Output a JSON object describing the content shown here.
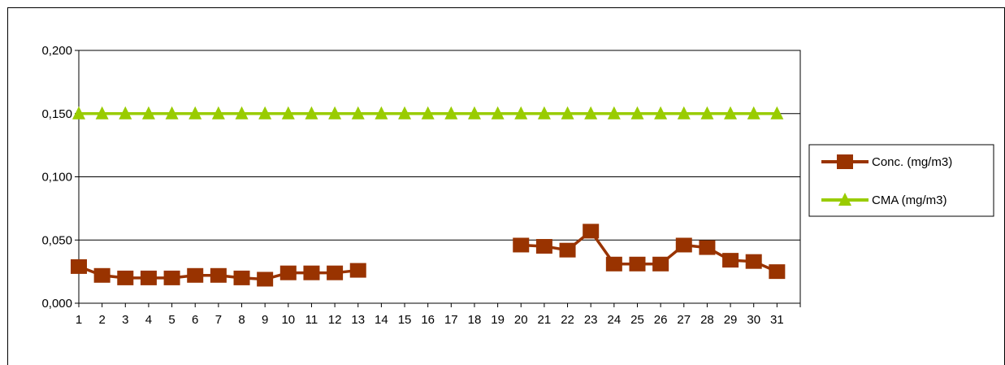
{
  "chart_data": {
    "type": "line",
    "categories": [
      "1",
      "2",
      "3",
      "4",
      "5",
      "6",
      "7",
      "8",
      "9",
      "10",
      "11",
      "12",
      "13",
      "14",
      "15",
      "16",
      "17",
      "18",
      "19",
      "20",
      "21",
      "22",
      "23",
      "24",
      "25",
      "26",
      "27",
      "28",
      "29",
      "30",
      "31"
    ],
    "ylim": [
      0,
      0.2
    ],
    "yticks": [
      "0,000",
      "0,050",
      "0,100",
      "0,150",
      "0,200"
    ],
    "ytick_values": [
      0,
      0.05,
      0.1,
      0.15,
      0.2
    ],
    "grid": "horizontal",
    "legend_position": "right",
    "series": [
      {
        "name": "Conc. (mg/m3)",
        "color": "#993300",
        "marker": "square",
        "values": [
          0.029,
          0.022,
          0.02,
          0.02,
          0.02,
          0.022,
          0.022,
          0.02,
          0.019,
          0.024,
          0.024,
          0.024,
          0.026,
          null,
          null,
          null,
          null,
          null,
          null,
          0.046,
          0.045,
          0.042,
          0.057,
          0.031,
          0.031,
          0.031,
          0.046,
          0.044,
          0.034,
          0.033,
          0.025
        ]
      },
      {
        "name": "CMA (mg/m3)",
        "color": "#99CC00",
        "marker": "triangle",
        "values": [
          0.15,
          0.15,
          0.15,
          0.15,
          0.15,
          0.15,
          0.15,
          0.15,
          0.15,
          0.15,
          0.15,
          0.15,
          0.15,
          0.15,
          0.15,
          0.15,
          0.15,
          0.15,
          0.15,
          0.15,
          0.15,
          0.15,
          0.15,
          0.15,
          0.15,
          0.15,
          0.15,
          0.15,
          0.15,
          0.15,
          0.15
        ]
      }
    ]
  }
}
